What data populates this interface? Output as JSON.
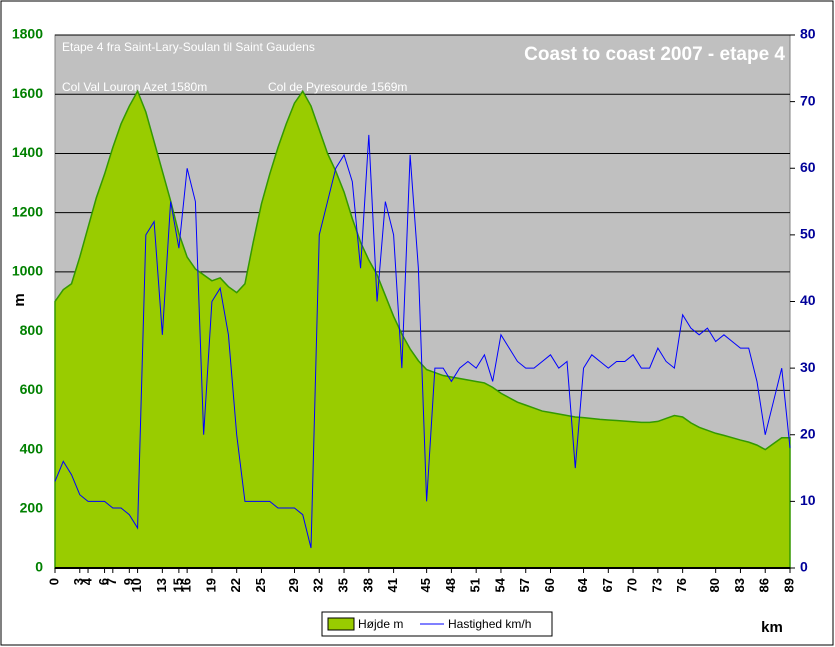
{
  "chart_data": {
    "type": "area-line",
    "title": "Coast to coast 2007 - etape 4",
    "annotations": [
      "Etape 4 fra Saint-Lary-Soulan til Saint Gaudens",
      "Col Val Louron Azet 1580m",
      "Col de Pyresourde 1569m"
    ],
    "y_label": "m",
    "x_label": "km",
    "xlim": [
      0,
      89
    ],
    "xticks": [
      0,
      3,
      4,
      6,
      7,
      9,
      10,
      13,
      15,
      16,
      19,
      22,
      25,
      29,
      32,
      35,
      38,
      41,
      45,
      48,
      51,
      54,
      57,
      60,
      64,
      67,
      70,
      73,
      76,
      80,
      83,
      86,
      89
    ],
    "ylim": [
      0,
      1800
    ],
    "yticks": [
      0,
      200,
      400,
      600,
      800,
      1000,
      1200,
      1400,
      1600,
      1800
    ],
    "y2lim": [
      0,
      80
    ],
    "y2ticks": [
      0,
      10,
      20,
      30,
      40,
      50,
      60,
      70,
      80
    ],
    "grid": true,
    "series": [
      {
        "name": "Højde m",
        "type": "area",
        "color": "#99cc00",
        "line_color": "#339900",
        "x": [
          0,
          1,
          2,
          3,
          4,
          5,
          6,
          7,
          8,
          9,
          10,
          11,
          12,
          13,
          14,
          15,
          16,
          17,
          18,
          19,
          20,
          21,
          22,
          23,
          24,
          25,
          26,
          27,
          28,
          29,
          30,
          31,
          32,
          33,
          34,
          35,
          36,
          37,
          38,
          39,
          40,
          41,
          42,
          43,
          44,
          45,
          46,
          47,
          48,
          49,
          50,
          51,
          52,
          53,
          54,
          55,
          56,
          57,
          58,
          59,
          60,
          61,
          62,
          63,
          64,
          65,
          66,
          67,
          68,
          69,
          70,
          71,
          72,
          73,
          74,
          75,
          76,
          77,
          78,
          79,
          80,
          81,
          82,
          83,
          84,
          85,
          86,
          87,
          88,
          89
        ],
        "values": [
          900,
          940,
          960,
          1050,
          1150,
          1250,
          1330,
          1420,
          1500,
          1560,
          1610,
          1540,
          1440,
          1340,
          1240,
          1130,
          1050,
          1010,
          990,
          970,
          980,
          950,
          930,
          960,
          1100,
          1230,
          1330,
          1420,
          1500,
          1570,
          1610,
          1560,
          1480,
          1400,
          1340,
          1270,
          1180,
          1100,
          1040,
          990,
          920,
          850,
          790,
          740,
          700,
          670,
          660,
          650,
          645,
          640,
          635,
          630,
          625,
          610,
          590,
          575,
          560,
          550,
          540,
          530,
          525,
          520,
          515,
          510,
          508,
          505,
          502,
          500,
          498,
          496,
          494,
          492,
          492,
          495,
          505,
          515,
          510,
          490,
          475,
          465,
          455,
          448,
          440,
          432,
          425,
          415,
          400,
          420,
          440,
          440
        ]
      },
      {
        "name": "Hastighed km/h",
        "type": "line",
        "axis": "y2",
        "color": "#0000ff",
        "x": [
          0,
          1,
          2,
          3,
          4,
          5,
          6,
          7,
          8,
          9,
          10,
          11,
          12,
          13,
          14,
          15,
          16,
          17,
          18,
          19,
          20,
          21,
          22,
          23,
          24,
          25,
          26,
          27,
          28,
          29,
          30,
          31,
          32,
          33,
          34,
          35,
          36,
          37,
          38,
          39,
          40,
          41,
          42,
          43,
          44,
          45,
          46,
          47,
          48,
          49,
          50,
          51,
          52,
          53,
          54,
          55,
          56,
          57,
          58,
          59,
          60,
          61,
          62,
          63,
          64,
          65,
          66,
          67,
          68,
          69,
          70,
          71,
          72,
          73,
          74,
          75,
          76,
          77,
          78,
          79,
          80,
          81,
          82,
          83,
          84,
          85,
          86,
          87,
          88,
          89
        ],
        "values": [
          13,
          16,
          14,
          11,
          10,
          10,
          10,
          9,
          9,
          8,
          6,
          50,
          52,
          35,
          55,
          48,
          60,
          55,
          20,
          40,
          42,
          35,
          20,
          10,
          10,
          10,
          10,
          9,
          9,
          9,
          8,
          3,
          50,
          55,
          60,
          62,
          58,
          45,
          65,
          40,
          55,
          50,
          30,
          62,
          45,
          10,
          30,
          30,
          28,
          30,
          31,
          30,
          32,
          28,
          35,
          33,
          31,
          30,
          30,
          31,
          32,
          30,
          31,
          15,
          30,
          32,
          31,
          30,
          31,
          31,
          32,
          30,
          30,
          33,
          31,
          30,
          38,
          36,
          35,
          36,
          34,
          35,
          34,
          33,
          33,
          28,
          20,
          25,
          30,
          18
        ]
      }
    ]
  }
}
